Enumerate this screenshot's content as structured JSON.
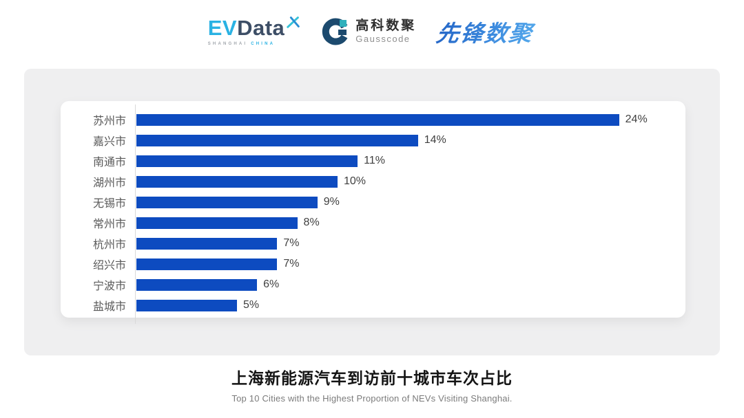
{
  "header": {
    "evdata_logo": {
      "text_ev": "EV",
      "text_data": "Data",
      "sub_left": "SHANGHAI",
      "sub_right": "CHINA",
      "color_light_blue": "#2ab2e3",
      "color_dark": "#3d4e66"
    },
    "gausscode_logo": {
      "cn_text": "高科数聚",
      "en_text": "Gausscode",
      "icon": "g-ring-icon",
      "icon_navy": "#1c4a6e",
      "icon_teal": "#2fb0bc"
    },
    "pioneer_logo": {
      "text": "先锋数聚",
      "color_start": "#2465c6",
      "color_end": "#55aaec"
    }
  },
  "chart_data": {
    "type": "bar",
    "orientation": "horizontal",
    "categories": [
      "苏州市",
      "嘉兴市",
      "南通市",
      "湖州市",
      "无锡市",
      "常州市",
      "杭州市",
      "绍兴市",
      "宁波市",
      "盐城市"
    ],
    "values": [
      24,
      14,
      11,
      10,
      9,
      8,
      7,
      7,
      6,
      5
    ],
    "value_labels": [
      "24%",
      "14%",
      "11%",
      "10%",
      "9%",
      "8%",
      "7%",
      "7%",
      "6%",
      "5%"
    ],
    "bar_color": "#0d4bc0",
    "label_color": "#595959",
    "value_label_color": "#3f3f3f",
    "xlim": [
      0,
      27.3
    ],
    "grid": false,
    "legend": "none",
    "title": "上海新能源汽车到访前十城市车次占比",
    "subtitle": "Top 10 Cities with the Highest Proportion of  NEVs Visiting Shanghai."
  }
}
